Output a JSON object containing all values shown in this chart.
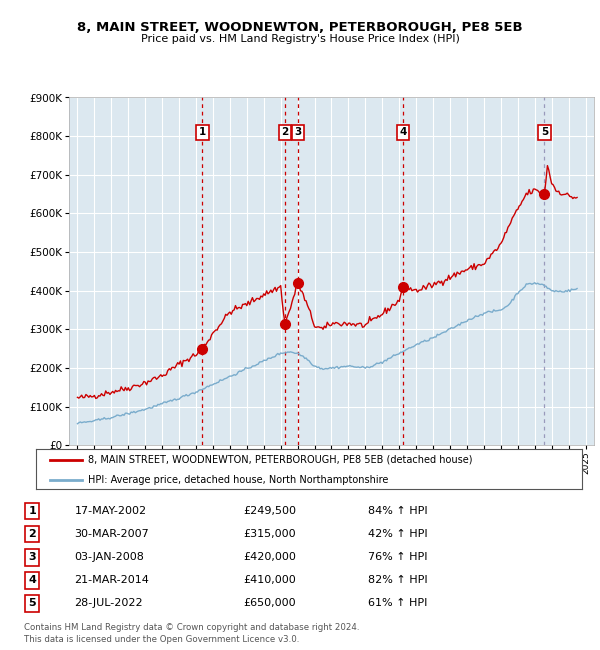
{
  "title": "8, MAIN STREET, WOODNEWTON, PETERBOROUGH, PE8 5EB",
  "subtitle": "Price paid vs. HM Land Registry's House Price Index (HPI)",
  "footnote1": "Contains HM Land Registry data © Crown copyright and database right 2024.",
  "footnote2": "This data is licensed under the Open Government Licence v3.0.",
  "legend_line1": "8, MAIN STREET, WOODNEWTON, PETERBOROUGH, PE8 5EB (detached house)",
  "legend_line2": "HPI: Average price, detached house, North Northamptonshire",
  "sales": [
    {
      "num": 1,
      "date": "17-MAY-2002",
      "price": 249500,
      "pct": "84%",
      "dir": "↑"
    },
    {
      "num": 2,
      "date": "30-MAR-2007",
      "price": 315000,
      "pct": "42%",
      "dir": "↑"
    },
    {
      "num": 3,
      "date": "03-JAN-2008",
      "price": 420000,
      "pct": "76%",
      "dir": "↑"
    },
    {
      "num": 4,
      "date": "21-MAR-2014",
      "price": 410000,
      "pct": "82%",
      "dir": "↑"
    },
    {
      "num": 5,
      "date": "28-JUL-2022",
      "price": 650000,
      "pct": "61%",
      "dir": "↑"
    }
  ],
  "sale_years": [
    2002.38,
    2007.25,
    2008.01,
    2014.22,
    2022.57
  ],
  "sale_prices": [
    249500,
    315000,
    420000,
    410000,
    650000
  ],
  "sale_vline_colors": [
    "#cc0000",
    "#cc0000",
    "#cc0000",
    "#cc0000",
    "#aaaacc"
  ],
  "red_line_x": [
    1995.0,
    1995.08,
    1995.17,
    1995.25,
    1995.33,
    1995.42,
    1995.5,
    1995.58,
    1995.67,
    1995.75,
    1995.83,
    1995.92,
    1996.0,
    1996.08,
    1996.17,
    1996.25,
    1996.33,
    1996.42,
    1996.5,
    1996.58,
    1996.67,
    1996.75,
    1996.83,
    1996.92,
    1997.0,
    1997.08,
    1997.17,
    1997.25,
    1997.33,
    1997.42,
    1997.5,
    1997.58,
    1997.67,
    1997.75,
    1997.83,
    1997.92,
    1998.0,
    1998.08,
    1998.17,
    1998.25,
    1998.33,
    1998.42,
    1998.5,
    1998.58,
    1998.67,
    1998.75,
    1998.83,
    1998.92,
    1999.0,
    1999.08,
    1999.17,
    1999.25,
    1999.33,
    1999.42,
    1999.5,
    1999.58,
    1999.67,
    1999.75,
    1999.83,
    1999.92,
    2000.0,
    2000.08,
    2000.17,
    2000.25,
    2000.33,
    2000.42,
    2000.5,
    2000.58,
    2000.67,
    2000.75,
    2000.83,
    2000.92,
    2001.0,
    2001.08,
    2001.17,
    2001.25,
    2001.33,
    2001.42,
    2001.5,
    2001.58,
    2001.67,
    2001.75,
    2001.83,
    2001.92,
    2002.0,
    2002.08,
    2002.17,
    2002.25,
    2002.33,
    2002.38,
    2002.42,
    2002.5,
    2002.58,
    2002.67,
    2002.75,
    2002.83,
    2002.92,
    2003.0,
    2003.08,
    2003.17,
    2003.25,
    2003.33,
    2003.42,
    2003.5,
    2003.58,
    2003.67,
    2003.75,
    2003.83,
    2003.92,
    2004.0,
    2004.08,
    2004.17,
    2004.25,
    2004.33,
    2004.42,
    2004.5,
    2004.58,
    2004.67,
    2004.75,
    2004.83,
    2004.92,
    2005.0,
    2005.08,
    2005.17,
    2005.25,
    2005.33,
    2005.42,
    2005.5,
    2005.58,
    2005.67,
    2005.75,
    2005.83,
    2005.92,
    2006.0,
    2006.08,
    2006.17,
    2006.25,
    2006.33,
    2006.42,
    2006.5,
    2006.58,
    2006.67,
    2006.75,
    2006.83,
    2006.92,
    2007.0,
    2007.08,
    2007.17,
    2007.25,
    2007.33,
    2007.42,
    2007.5,
    2007.58,
    2007.67,
    2007.75,
    2007.83,
    2007.92,
    2008.0,
    2008.01,
    2008.08,
    2008.17,
    2008.25,
    2008.33,
    2008.42,
    2008.5,
    2008.58,
    2008.67,
    2008.75,
    2008.83,
    2008.92,
    2009.0,
    2009.08,
    2009.17,
    2009.25,
    2009.33,
    2009.42,
    2009.5,
    2009.58,
    2009.67,
    2009.75,
    2009.83,
    2009.92,
    2010.0,
    2010.08,
    2010.17,
    2010.25,
    2010.33,
    2010.42,
    2010.5,
    2010.58,
    2010.67,
    2010.75,
    2010.83,
    2010.92,
    2011.0,
    2011.08,
    2011.17,
    2011.25,
    2011.33,
    2011.42,
    2011.5,
    2011.58,
    2011.67,
    2011.75,
    2011.83,
    2011.92,
    2012.0,
    2012.08,
    2012.17,
    2012.25,
    2012.33,
    2012.42,
    2012.5,
    2012.58,
    2012.67,
    2012.75,
    2012.83,
    2012.92,
    2013.0,
    2013.08,
    2013.17,
    2013.25,
    2013.33,
    2013.42,
    2013.5,
    2013.58,
    2013.67,
    2013.75,
    2013.83,
    2013.92,
    2014.0,
    2014.08,
    2014.17,
    2014.22,
    2014.25,
    2014.33,
    2014.42,
    2014.5,
    2014.58,
    2014.67,
    2014.75,
    2014.83,
    2014.92,
    2015.0,
    2015.08,
    2015.17,
    2015.25,
    2015.33,
    2015.42,
    2015.5,
    2015.58,
    2015.67,
    2015.75,
    2015.83,
    2015.92,
    2016.0,
    2016.08,
    2016.17,
    2016.25,
    2016.33,
    2016.42,
    2016.5,
    2016.58,
    2016.67,
    2016.75,
    2016.83,
    2016.92,
    2017.0,
    2017.08,
    2017.17,
    2017.25,
    2017.33,
    2017.42,
    2017.5,
    2017.58,
    2017.67,
    2017.75,
    2017.83,
    2017.92,
    2018.0,
    2018.08,
    2018.17,
    2018.25,
    2018.33,
    2018.42,
    2018.5,
    2018.58,
    2018.67,
    2018.75,
    2018.83,
    2018.92,
    2019.0,
    2019.08,
    2019.17,
    2019.25,
    2019.33,
    2019.42,
    2019.5,
    2019.58,
    2019.67,
    2019.75,
    2019.83,
    2019.92,
    2020.0,
    2020.08,
    2020.17,
    2020.25,
    2020.33,
    2020.42,
    2020.5,
    2020.58,
    2020.67,
    2020.75,
    2020.83,
    2020.92,
    2021.0,
    2021.08,
    2021.17,
    2021.25,
    2021.33,
    2021.42,
    2021.5,
    2021.58,
    2021.67,
    2021.75,
    2021.83,
    2021.92,
    2022.0,
    2022.08,
    2022.17,
    2022.25,
    2022.33,
    2022.42,
    2022.5,
    2022.57,
    2022.58,
    2022.67,
    2022.75,
    2022.83,
    2022.92,
    2023.0,
    2023.08,
    2023.17,
    2023.25,
    2023.33,
    2023.42,
    2023.5,
    2023.58,
    2023.67,
    2023.75,
    2023.83,
    2023.92,
    2024.0,
    2024.08,
    2024.17,
    2024.25,
    2024.33,
    2024.42,
    2024.5
  ],
  "blue_line_x": [
    1995.0,
    1995.08,
    1995.17,
    1995.25,
    1995.33,
    1995.42,
    1995.5,
    1995.58,
    1995.67,
    1995.75,
    1995.83,
    1995.92,
    1996.0,
    1996.08,
    1996.17,
    1996.25,
    1996.33,
    1996.42,
    1996.5,
    1996.58,
    1996.67,
    1996.75,
    1996.83,
    1996.92,
    1997.0,
    1997.08,
    1997.17,
    1997.25,
    1997.33,
    1997.42,
    1997.5,
    1997.58,
    1997.67,
    1997.75,
    1997.83,
    1997.92,
    1998.0,
    1998.08,
    1998.17,
    1998.25,
    1998.33,
    1998.42,
    1998.5,
    1998.58,
    1998.67,
    1998.75,
    1998.83,
    1998.92,
    1999.0,
    1999.08,
    1999.17,
    1999.25,
    1999.33,
    1999.42,
    1999.5,
    1999.58,
    1999.67,
    1999.75,
    1999.83,
    1999.92,
    2000.0,
    2000.08,
    2000.17,
    2000.25,
    2000.33,
    2000.42,
    2000.5,
    2000.58,
    2000.67,
    2000.75,
    2000.83,
    2000.92,
    2001.0,
    2001.08,
    2001.17,
    2001.25,
    2001.33,
    2001.42,
    2001.5,
    2001.58,
    2001.67,
    2001.75,
    2001.83,
    2001.92,
    2002.0,
    2002.08,
    2002.17,
    2002.25,
    2002.33,
    2002.42,
    2002.5,
    2002.58,
    2002.67,
    2002.75,
    2002.83,
    2002.92,
    2003.0,
    2003.08,
    2003.17,
    2003.25,
    2003.33,
    2003.42,
    2003.5,
    2003.58,
    2003.67,
    2003.75,
    2003.83,
    2003.92,
    2004.0,
    2004.08,
    2004.17,
    2004.25,
    2004.33,
    2004.42,
    2004.5,
    2004.58,
    2004.67,
    2004.75,
    2004.83,
    2004.92,
    2005.0,
    2005.08,
    2005.17,
    2005.25,
    2005.33,
    2005.42,
    2005.5,
    2005.58,
    2005.67,
    2005.75,
    2005.83,
    2005.92,
    2006.0,
    2006.08,
    2006.17,
    2006.25,
    2006.33,
    2006.42,
    2006.5,
    2006.58,
    2006.67,
    2006.75,
    2006.83,
    2006.92,
    2007.0,
    2007.08,
    2007.17,
    2007.25,
    2007.33,
    2007.42,
    2007.5,
    2007.58,
    2007.67,
    2007.75,
    2007.83,
    2007.92,
    2008.0,
    2008.08,
    2008.17,
    2008.25,
    2008.33,
    2008.42,
    2008.5,
    2008.58,
    2008.67,
    2008.75,
    2008.83,
    2008.92,
    2009.0,
    2009.08,
    2009.17,
    2009.25,
    2009.33,
    2009.42,
    2009.5,
    2009.58,
    2009.67,
    2009.75,
    2009.83,
    2009.92,
    2010.0,
    2010.08,
    2010.17,
    2010.25,
    2010.33,
    2010.42,
    2010.5,
    2010.58,
    2010.67,
    2010.75,
    2010.83,
    2010.92,
    2011.0,
    2011.08,
    2011.17,
    2011.25,
    2011.33,
    2011.42,
    2011.5,
    2011.58,
    2011.67,
    2011.75,
    2011.83,
    2011.92,
    2012.0,
    2012.08,
    2012.17,
    2012.25,
    2012.33,
    2012.42,
    2012.5,
    2012.58,
    2012.67,
    2012.75,
    2012.83,
    2012.92,
    2013.0,
    2013.08,
    2013.17,
    2013.25,
    2013.33,
    2013.42,
    2013.5,
    2013.58,
    2013.67,
    2013.75,
    2013.83,
    2013.92,
    2014.0,
    2014.08,
    2014.17,
    2014.25,
    2014.33,
    2014.42,
    2014.5,
    2014.58,
    2014.67,
    2014.75,
    2014.83,
    2014.92,
    2015.0,
    2015.08,
    2015.17,
    2015.25,
    2015.33,
    2015.42,
    2015.5,
    2015.58,
    2015.67,
    2015.75,
    2015.83,
    2015.92,
    2016.0,
    2016.08,
    2016.17,
    2016.25,
    2016.33,
    2016.42,
    2016.5,
    2016.58,
    2016.67,
    2016.75,
    2016.83,
    2016.92,
    2017.0,
    2017.08,
    2017.17,
    2017.25,
    2017.33,
    2017.42,
    2017.5,
    2017.58,
    2017.67,
    2017.75,
    2017.83,
    2017.92,
    2018.0,
    2018.08,
    2018.17,
    2018.25,
    2018.33,
    2018.42,
    2018.5,
    2018.58,
    2018.67,
    2018.75,
    2018.83,
    2018.92,
    2019.0,
    2019.08,
    2019.17,
    2019.25,
    2019.33,
    2019.42,
    2019.5,
    2019.58,
    2019.67,
    2019.75,
    2019.83,
    2019.92,
    2020.0,
    2020.08,
    2020.17,
    2020.25,
    2020.33,
    2020.42,
    2020.5,
    2020.58,
    2020.67,
    2020.75,
    2020.83,
    2020.92,
    2021.0,
    2021.08,
    2021.17,
    2021.25,
    2021.33,
    2021.42,
    2021.5,
    2021.58,
    2021.67,
    2021.75,
    2021.83,
    2021.92,
    2022.0,
    2022.08,
    2022.17,
    2022.25,
    2022.33,
    2022.42,
    2022.5,
    2022.58,
    2022.67,
    2022.75,
    2022.83,
    2022.92,
    2023.0,
    2023.08,
    2023.17,
    2023.25,
    2023.33,
    2023.42,
    2023.5,
    2023.58,
    2023.67,
    2023.75,
    2023.83,
    2023.92,
    2024.0,
    2024.08,
    2024.17,
    2024.25,
    2024.33,
    2024.42,
    2024.5
  ],
  "ylim": [
    0,
    900000
  ],
  "xlim": [
    1994.5,
    2025.5
  ],
  "bg_color": "#dce8f0",
  "red_color": "#cc0000",
  "blue_color": "#7aaccc",
  "dashed_color": "#cc0000",
  "dashed_color5": "#9999bb",
  "grid_color": "#ffffff"
}
